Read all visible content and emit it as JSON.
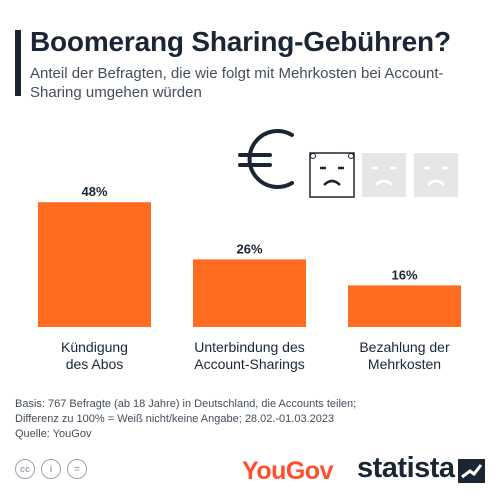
{
  "header": {
    "title": "Boomerang Sharing-Gebühren?",
    "subtitle": "Anteil der Befragten, die wie folgt mit Mehrkosten bei Account-Sharing umgehen würden"
  },
  "chart_data": {
    "type": "bar",
    "categories": [
      "Kündigung des Abos",
      "Unterbindung des Account-Sharings",
      "Bezahlung der Mehrkosten"
    ],
    "category_lines": [
      [
        "Kündigung",
        "des Abos"
      ],
      [
        "Unterbindung des",
        "Account-Sharings"
      ],
      [
        "Bezahlung der",
        "Mehrkosten"
      ]
    ],
    "values": [
      48,
      26,
      16
    ],
    "value_labels": [
      "48%",
      "26%",
      "16%"
    ],
    "bar_color": "#ff6b1f",
    "ylim": [
      0,
      50
    ],
    "grid": false,
    "title": "",
    "xlabel": "",
    "ylabel": ""
  },
  "illustration": {
    "icons": [
      "euro-icon",
      "sad-face-icon",
      "sad-face-icon",
      "sad-face-icon"
    ],
    "colors": {
      "line": "#1a2633",
      "faded": "#e6e6e6"
    }
  },
  "footer": {
    "basis_line1": "Basis: 767 Befragte (ab 18 Jahre) in Deutschland, die Accounts teilen;",
    "basis_line2": "Differenz zu 100% = Weiß nicht/keine Angabe; 28.02.-01.03.2023",
    "source": "Quelle: YouGov",
    "license_icons": [
      "cc",
      "i",
      "="
    ]
  },
  "brands": {
    "yougov": "YouGov",
    "statista": "statista"
  },
  "colors": {
    "title": "#1a2633",
    "text": "#444e5a",
    "yougov": "#ff4f2d"
  }
}
